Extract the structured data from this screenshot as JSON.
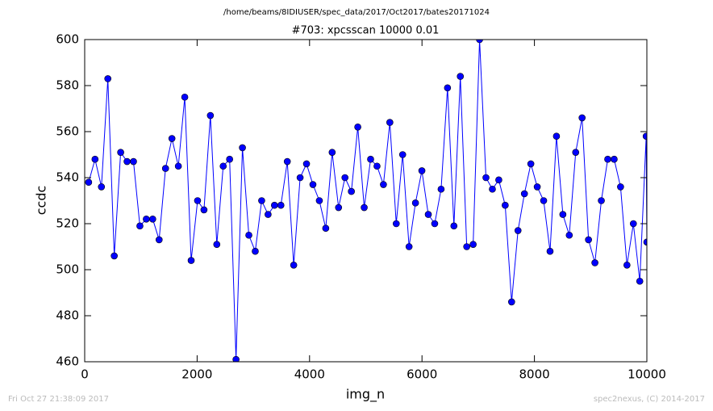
{
  "chart_data": {
    "type": "line",
    "suptitle": "/home/beams/8IDIUSER/spec_data/2017/Oct2017/bates20171024",
    "title": "#703: xpcsscan 10000 0.01",
    "xlabel": "img_n",
    "ylabel": "ccdc",
    "footer_left": "Fri Oct 27 21:38:09 2017",
    "footer_right": "spec2nexus, (C) 2014-2017",
    "xlim": [
      0,
      10000
    ],
    "xticks": [
      0,
      2000,
      4000,
      6000,
      8000,
      10000
    ],
    "ylim": [
      460,
      600
    ],
    "yticks": [
      460,
      480,
      500,
      520,
      540,
      560,
      580,
      600
    ],
    "x": [
      70,
      184,
      298,
      412,
      526,
      640,
      754,
      868,
      982,
      1096,
      1210,
      1324,
      1438,
      1552,
      1666,
      1780,
      1894,
      2008,
      2122,
      2236,
      2350,
      2464,
      2578,
      2692,
      2806,
      2920,
      3034,
      3148,
      3262,
      3376,
      3490,
      3604,
      3718,
      3832,
      3946,
      4060,
      4174,
      4288,
      4402,
      4516,
      4630,
      4744,
      4858,
      4972,
      5086,
      5200,
      5314,
      5428,
      5542,
      5656,
      5770,
      5884,
      5998,
      6112,
      6226,
      6340,
      6454,
      6568,
      6682,
      6796,
      6910,
      7024,
      7138,
      7252,
      7366,
      7480,
      7594,
      7708,
      7822,
      7936,
      8050,
      8164,
      8278,
      8392,
      8506,
      8620,
      8734,
      8848,
      8962,
      9076,
      9190,
      9304,
      9418,
      9532,
      9646,
      9760,
      9874,
      9988,
      10000
    ],
    "series": [
      {
        "color": "#0000ff",
        "values": [
          538,
          548,
          536,
          583,
          506,
          551,
          547,
          547,
          519,
          522,
          522,
          513,
          544,
          557,
          545,
          575,
          504,
          530,
          526,
          567,
          511,
          545,
          548,
          461,
          553,
          515,
          508,
          530,
          524,
          528,
          528,
          547,
          502,
          540,
          546,
          537,
          530,
          518,
          551,
          527,
          540,
          534,
          562,
          527,
          548,
          545,
          537,
          564,
          520,
          550,
          510,
          529,
          543,
          524,
          520,
          535,
          579,
          519,
          584,
          510,
          511,
          600,
          540,
          535,
          539,
          528,
          486,
          517,
          533,
          546,
          536,
          530,
          508,
          558,
          524,
          515,
          551,
          566,
          513,
          503,
          530,
          548,
          548,
          536,
          502,
          520,
          495,
          558,
          512
        ]
      }
    ]
  }
}
